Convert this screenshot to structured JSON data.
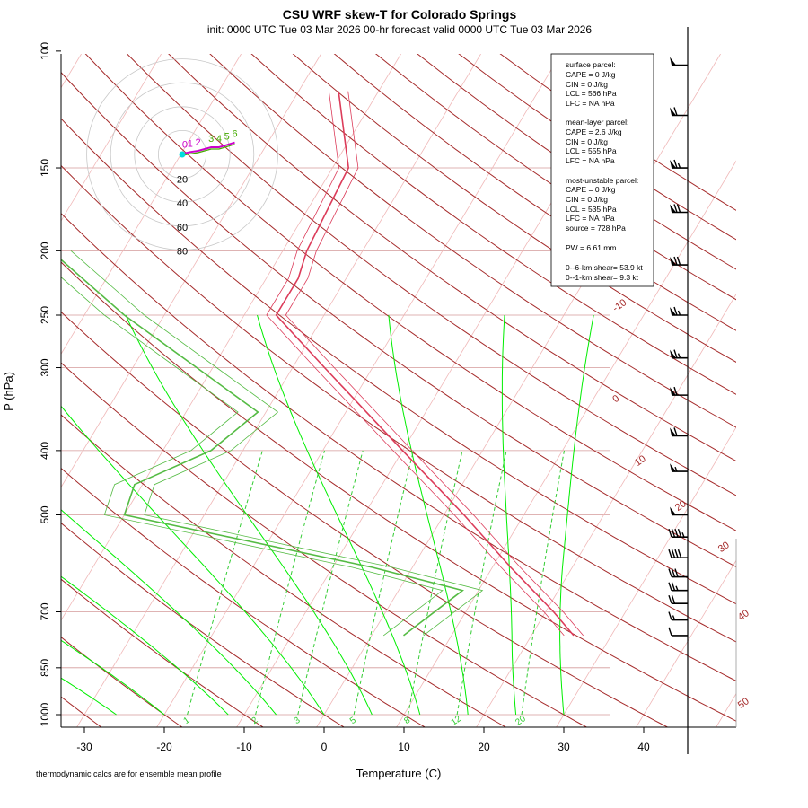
{
  "chart_data": {
    "type": "skew-T",
    "title": "CSU WRF skew-T for Colorado Springs",
    "subtitle": "init: 0000 UTC Tue 03 Mar 2026     00-hr forecast valid 0000 UTC Tue 03 Mar 2026",
    "xlabel": "Temperature (C)",
    "ylabel": "P (hPa)",
    "footnote": "thermodynamic calcs are for ensemble mean profile",
    "x_ticks": [
      "-30",
      "-20",
      "-10",
      "0",
      "10",
      "20",
      "30",
      "40"
    ],
    "y_ticks": [
      "100",
      "150",
      "200",
      "250",
      "300",
      "400",
      "500",
      "700",
      "850",
      "1000"
    ],
    "isotherm_labels": [
      "-10",
      "0",
      "10",
      "20",
      "30",
      "40",
      "50"
    ],
    "mixing_ratio_labels": [
      "1",
      "2",
      "3",
      "5",
      "8",
      "12",
      "20"
    ],
    "hodograph_ring_labels": [
      "20",
      "40",
      "60",
      "80"
    ],
    "stats": {
      "surface_header": "surface parcel:",
      "surface_cape": "CAPE = 0 J/kg",
      "surface_cin": "CIN = 0 J/kg",
      "surface_lcl": "LCL = 566 hPa",
      "surface_lfc": "LFC = NA hPa",
      "ml_header": "mean-layer parcel:",
      "ml_cape": "CAPE = 2.6 J/kg",
      "ml_cin": "CIN = 0 J/kg",
      "ml_lcl": "LCL = 555 hPa",
      "ml_lfc": "LFC = NA hPa",
      "mu_header": "most-unstable parcel:",
      "mu_cape": "CAPE = 0 J/kg",
      "mu_cin": "CIN = 0 J/kg",
      "mu_lcl": "LCL = 535 hPa",
      "mu_lfc": "LFC = NA hPa",
      "mu_source": "source = 728 hPa",
      "pw": "PW =  6.61 mm",
      "shear6": "0--6-km shear= 53.9 kt",
      "shear1": "0--1-km shear= 9.3 kt"
    },
    "temperature_profile": [
      {
        "p": 760,
        "t": 25.3
      },
      {
        "p": 700,
        "t": 21.0
      },
      {
        "p": 600,
        "t": 12.3
      },
      {
        "p": 500,
        "t": 2.5
      },
      {
        "p": 400,
        "t": -10.0
      },
      {
        "p": 300,
        "t": -26.0
      },
      {
        "p": 250,
        "t": -36.0
      },
      {
        "p": 220,
        "t": -36.0
      },
      {
        "p": 200,
        "t": -37.0
      },
      {
        "p": 150,
        "t": -38.0
      },
      {
        "p": 115,
        "t": -45.0
      }
    ],
    "dewpoint_profile": [
      {
        "p": 760,
        "t": 4.0
      },
      {
        "p": 650,
        "t": 8.0
      },
      {
        "p": 600,
        "t": -5.0
      },
      {
        "p": 500,
        "t": -40.0
      },
      {
        "p": 450,
        "t": -41.0
      },
      {
        "p": 400,
        "t": -34.0
      },
      {
        "p": 350,
        "t": -31.0
      },
      {
        "p": 300,
        "t": -42.0
      },
      {
        "p": 250,
        "t": -55.0
      },
      {
        "p": 200,
        "t": -69.0
      }
    ],
    "wind_barbs_kt": [
      {
        "p": 760,
        "speed": 10
      },
      {
        "p": 720,
        "speed": 15
      },
      {
        "p": 680,
        "speed": 20
      },
      {
        "p": 650,
        "speed": 25
      },
      {
        "p": 620,
        "speed": 30
      },
      {
        "p": 580,
        "speed": 40
      },
      {
        "p": 540,
        "speed": 45
      },
      {
        "p": 500,
        "speed": 50
      },
      {
        "p": 430,
        "speed": 55
      },
      {
        "p": 380,
        "speed": 60
      },
      {
        "p": 330,
        "speed": 60
      },
      {
        "p": 290,
        "speed": 65
      },
      {
        "p": 250,
        "speed": 65
      },
      {
        "p": 210,
        "speed": 70
      },
      {
        "p": 175,
        "speed": 70
      },
      {
        "p": 150,
        "speed": 65
      },
      {
        "p": 125,
        "speed": 60
      },
      {
        "p": 105,
        "speed": 50
      }
    ],
    "hodograph_points": [
      {
        "label": "0",
        "u": 2,
        "v": 1
      },
      {
        "label": "1",
        "u": 6,
        "v": 2
      },
      {
        "label": "2",
        "u": 12,
        "v": 3
      },
      {
        "label": "3",
        "u": 22,
        "v": 6
      },
      {
        "label": "4",
        "u": 28,
        "v": 6
      },
      {
        "label": "5",
        "u": 34,
        "v": 8
      },
      {
        "label": "6",
        "u": 40,
        "v": 10
      }
    ],
    "colors": {
      "isotherm": "#f0b8b8",
      "isobar": "#d49a9a",
      "dry_adiabat": "#a52a2a",
      "moist_adiabat": "#00ee00",
      "mixing_ratio": "#33cc33",
      "temperature": "#dc3c5a",
      "dewpoint": "#55bb44",
      "hodo_ring": "#c8c8c8",
      "hodo_trace": "#cc00cc",
      "hodo_label_green": "#44aa00"
    }
  }
}
